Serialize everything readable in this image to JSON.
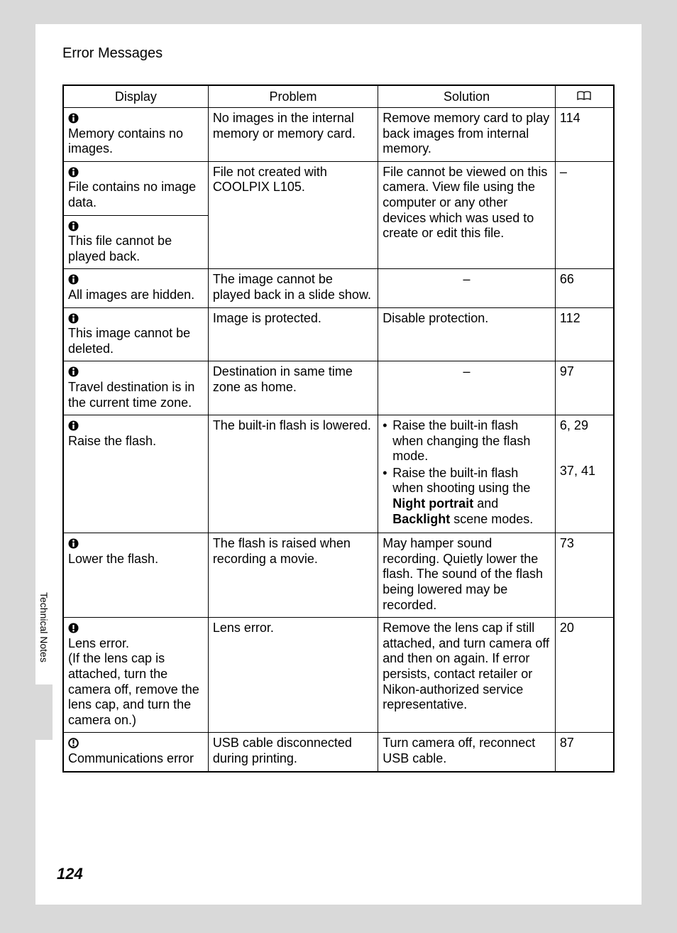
{
  "heading": "Error Messages",
  "side_label": "Technical Notes",
  "page_number": "124",
  "headers": {
    "display": "Display",
    "problem": "Problem",
    "solution": "Solution",
    "ref_icon": "book-icon"
  },
  "rows": [
    {
      "display_icon": "info-icon",
      "display": "Memory contains no images.",
      "problem": "No images in the internal memory or memory card.",
      "solution": "Remove memory card to play back images from internal memory.",
      "ref": "114"
    },
    {
      "display_icon": "info-icon",
      "display": "File contains no image data.",
      "display2_icon": "info-icon",
      "display2": "This file cannot be played back.",
      "problem": "File not created with COOLPIX L105.",
      "solution": "File cannot be viewed on this camera. View file using the computer or any other devices which was used to create or edit this file.",
      "ref": "–"
    },
    {
      "display_icon": "info-icon",
      "display": "All images are hidden.",
      "problem": "The image cannot be played back in a slide show.",
      "solution": "–",
      "ref": "66"
    },
    {
      "display_icon": "info-icon",
      "display": "This image cannot be deleted.",
      "problem": "Image is protected.",
      "solution": "Disable protection.",
      "ref": "112"
    },
    {
      "display_icon": "info-icon",
      "display": "Travel destination is in the current time zone.",
      "problem": "Destination in same time zone as home.",
      "solution": "–",
      "ref": "97"
    },
    {
      "display_icon": "info-icon",
      "display": "Raise the flash.",
      "problem": "The built-in flash is lowered.",
      "solution_list": [
        "Raise the built-in flash when changing the flash mode.",
        "Raise the built-in flash when shooting using the <b>Night portrait</b> and <b>Backlight</b> scene modes."
      ],
      "ref_list": [
        "6, 29",
        "37, 41"
      ]
    },
    {
      "display_icon": "info-icon",
      "display": "Lower the flash.",
      "problem": "The flash is raised when recording a movie.",
      "solution": "May hamper sound recording. Quietly lower the flash. The sound of the flash being lowered may be recorded.",
      "ref": "73"
    },
    {
      "display_icon": "warn-icon",
      "display": "Lens error.\n(If the lens cap is attached, turn the camera off, remove the lens cap, and turn the camera on.)",
      "problem": "Lens error.",
      "solution": "Remove the lens cap if still attached, and turn camera off and then on again. If error persists, contact retailer or Nikon-authorized service representative.",
      "ref": "20"
    },
    {
      "display_icon": "clock-icon",
      "display": "Communications error",
      "problem": "USB cable disconnected during printing.",
      "solution": "Turn camera off, reconnect USB cable.",
      "ref": "87"
    }
  ]
}
